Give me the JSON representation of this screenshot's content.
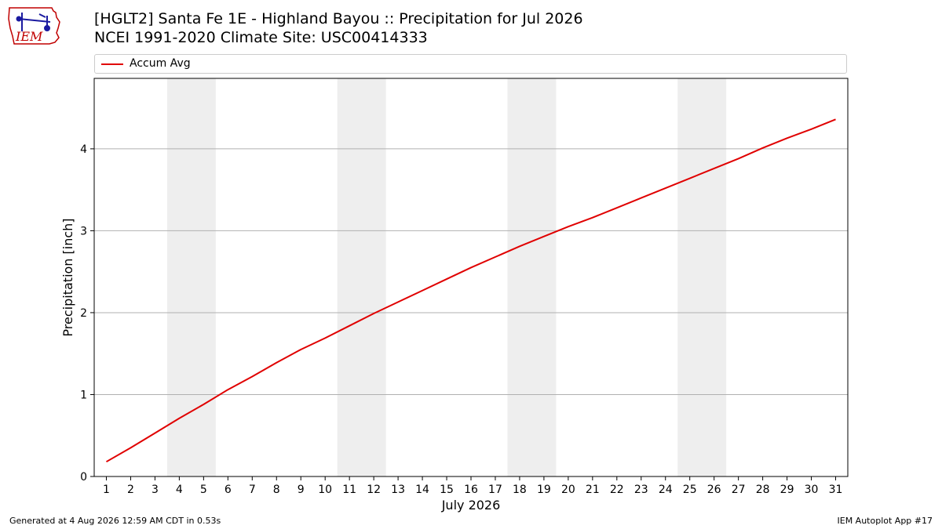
{
  "header": {
    "title_line1": "[HGLT2] Santa Fe 1E - Highland Bayou :: Precipitation for Jul 2026",
    "title_line2": "NCEI 1991-2020 Climate Site: USC00414333",
    "logo_text": "IEM",
    "logo_icon": "iowa-state-weather-icon"
  },
  "footer": {
    "generated": "Generated at 4 Aug 2026 12:59 AM CDT in 0.53s",
    "app": "IEM Autoplot App #17"
  },
  "chart_data": {
    "type": "line",
    "title": "[HGLT2] Santa Fe 1E - Highland Bayou :: Precipitation for Jul 2026",
    "subtitle": "NCEI 1991-2020 Climate Site: USC00414333",
    "xlabel": "July 2026",
    "ylabel": "Precipitation [inch]",
    "x": [
      1,
      2,
      3,
      4,
      5,
      6,
      7,
      8,
      9,
      10,
      11,
      12,
      13,
      14,
      15,
      16,
      17,
      18,
      19,
      20,
      21,
      22,
      23,
      24,
      25,
      26,
      27,
      28,
      29,
      30,
      31
    ],
    "xlim": [
      0.5,
      31.5
    ],
    "ylim": [
      0,
      4.86
    ],
    "yticks": [
      0,
      1,
      2,
      3,
      4
    ],
    "grid": "y",
    "legend": "top",
    "weekend_bands": [
      [
        3.5,
        5.5
      ],
      [
        10.5,
        12.5
      ],
      [
        17.5,
        19.5
      ],
      [
        24.5,
        26.5
      ]
    ],
    "series": [
      {
        "name": "Accum Avg",
        "color": "#e00000",
        "values": [
          0.18,
          0.35,
          0.53,
          0.71,
          0.88,
          1.06,
          1.22,
          1.39,
          1.55,
          1.69,
          1.84,
          1.99,
          2.13,
          2.27,
          2.41,
          2.55,
          2.68,
          2.81,
          2.93,
          3.05,
          3.16,
          3.28,
          3.4,
          3.52,
          3.64,
          3.76,
          3.88,
          4.01,
          4.13,
          4.24,
          4.36
        ]
      }
    ],
    "colors": {
      "band": "#eeeeee",
      "grid": "#b0b0b0"
    }
  }
}
